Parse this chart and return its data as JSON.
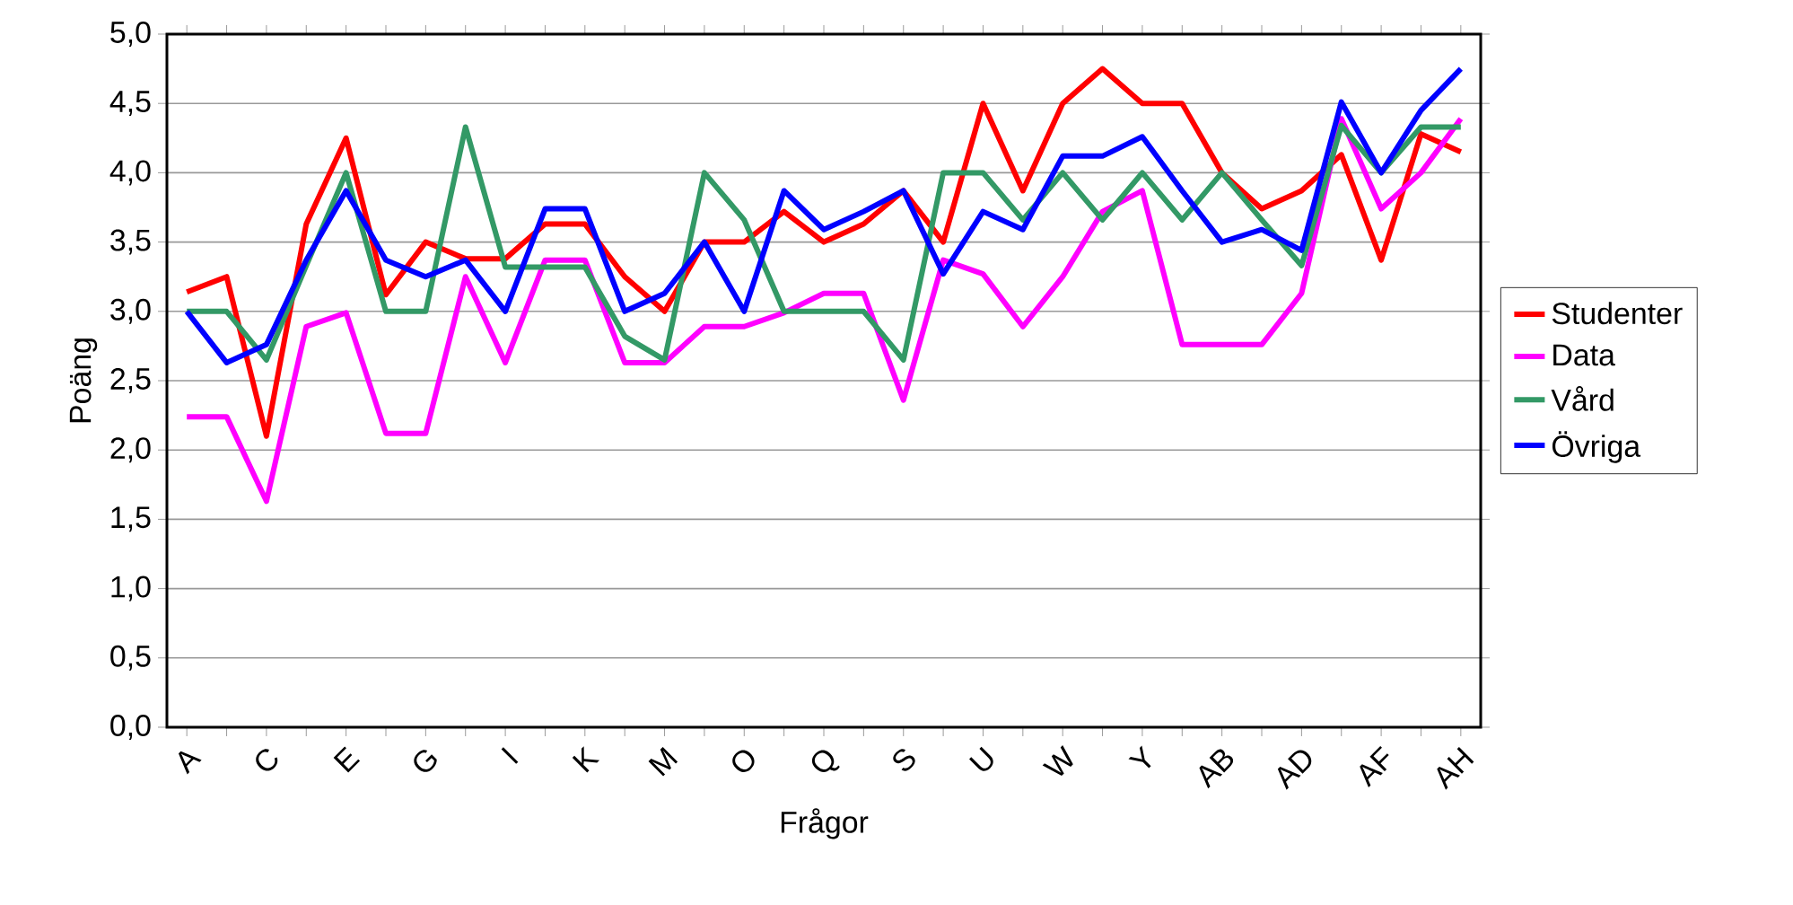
{
  "chart_data": {
    "type": "line",
    "xlabel": "Frågor",
    "ylabel": "Poäng",
    "categories": [
      "A",
      null,
      "C",
      null,
      "E",
      null,
      "G",
      null,
      "I",
      null,
      "K",
      null,
      "M",
      null,
      "O",
      null,
      "Q",
      null,
      "S",
      null,
      "U",
      null,
      "W",
      null,
      "Y",
      null,
      "AB",
      null,
      "AD",
      null,
      "AF",
      null,
      "AH"
    ],
    "ylim": [
      0,
      5
    ],
    "yticks": [
      {
        "value": 0,
        "label": "0,0"
      },
      {
        "value": 0.5,
        "label": "0,5"
      },
      {
        "value": 1,
        "label": "1,0"
      },
      {
        "value": 1.5,
        "label": "1,5"
      },
      {
        "value": 2,
        "label": "2,0"
      },
      {
        "value": 2.5,
        "label": "2,5"
      },
      {
        "value": 3,
        "label": "3,0"
      },
      {
        "value": 3.5,
        "label": "3,5"
      },
      {
        "value": 4,
        "label": "4,0"
      },
      {
        "value": 4.5,
        "label": "4,5"
      },
      {
        "value": 5,
        "label": "5,0"
      }
    ],
    "grid": "y",
    "legend": "right",
    "marker": "none",
    "line_style": "solid",
    "series": [
      {
        "name": "Studenter",
        "color": "#ff0000",
        "values": [
          3.14,
          3.25,
          2.1,
          3.63,
          4.25,
          3.12,
          3.5,
          3.38,
          3.38,
          3.63,
          3.63,
          3.25,
          3.0,
          3.5,
          3.5,
          3.72,
          3.5,
          3.63,
          3.87,
          3.5,
          4.5,
          3.87,
          4.5,
          4.75,
          4.5,
          4.5,
          4.0,
          3.74,
          3.87,
          4.13,
          3.37,
          4.28,
          4.15
        ]
      },
      {
        "name": "Data",
        "color": "#ff00ff",
        "values": [
          2.24,
          2.24,
          1.63,
          2.89,
          2.99,
          2.12,
          2.12,
          3.25,
          2.63,
          3.37,
          3.37,
          2.63,
          2.63,
          2.89,
          2.89,
          2.99,
          3.13,
          3.13,
          2.36,
          3.37,
          3.27,
          2.89,
          3.25,
          3.72,
          3.87,
          2.76,
          2.76,
          2.76,
          3.13,
          4.39,
          3.74,
          4.0,
          4.39
        ]
      },
      {
        "name": "Vård",
        "color": "#339966",
        "values": [
          3.0,
          3.0,
          2.65,
          3.33,
          4.0,
          3.0,
          3.0,
          4.33,
          3.32,
          3.32,
          3.32,
          2.82,
          2.65,
          4.0,
          3.66,
          3.0,
          3.0,
          3.0,
          2.65,
          4.0,
          4.0,
          3.66,
          4.0,
          3.66,
          4.0,
          3.66,
          4.0,
          3.66,
          3.33,
          4.34,
          4.0,
          4.33,
          4.33
        ]
      },
      {
        "name": "Övriga",
        "color": "#0000ff",
        "values": [
          3.0,
          2.63,
          2.76,
          3.37,
          3.87,
          3.37,
          3.25,
          3.37,
          3.0,
          3.74,
          3.74,
          3.0,
          3.13,
          3.5,
          3.0,
          3.87,
          3.59,
          3.72,
          3.87,
          3.27,
          3.72,
          3.59,
          4.12,
          4.12,
          4.26,
          3.87,
          3.5,
          3.59,
          3.44,
          4.51,
          4.0,
          4.45,
          4.75
        ]
      }
    ]
  }
}
